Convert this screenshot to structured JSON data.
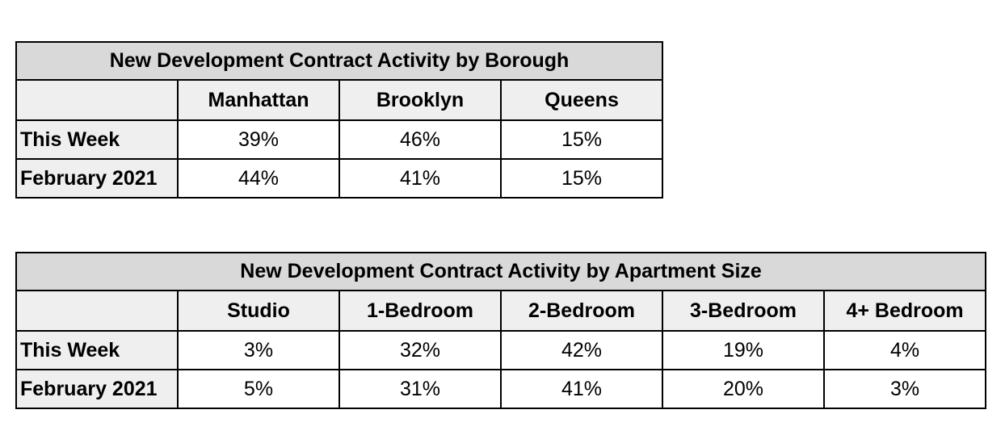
{
  "chart_data": [
    {
      "type": "table",
      "title": "New Development Contract Activity by Borough",
      "columns": [
        "Manhattan",
        "Brooklyn",
        "Queens"
      ],
      "rows": [
        {
          "label": "This Week",
          "values": [
            "39%",
            "46%",
            "15%"
          ]
        },
        {
          "label": "February 2021",
          "values": [
            "44%",
            "41%",
            "15%"
          ]
        }
      ]
    },
    {
      "type": "table",
      "title": "New Development Contract Activity by Apartment Size",
      "columns": [
        "Studio",
        "1-Bedroom",
        "2-Bedroom",
        "3-Bedroom",
        "4+ Bedroom"
      ],
      "rows": [
        {
          "label": "This Week",
          "values": [
            "3%",
            "32%",
            "42%",
            "19%",
            "4%"
          ]
        },
        {
          "label": "February 2021",
          "values": [
            "5%",
            "31%",
            "41%",
            "20%",
            "3%"
          ]
        }
      ]
    }
  ]
}
